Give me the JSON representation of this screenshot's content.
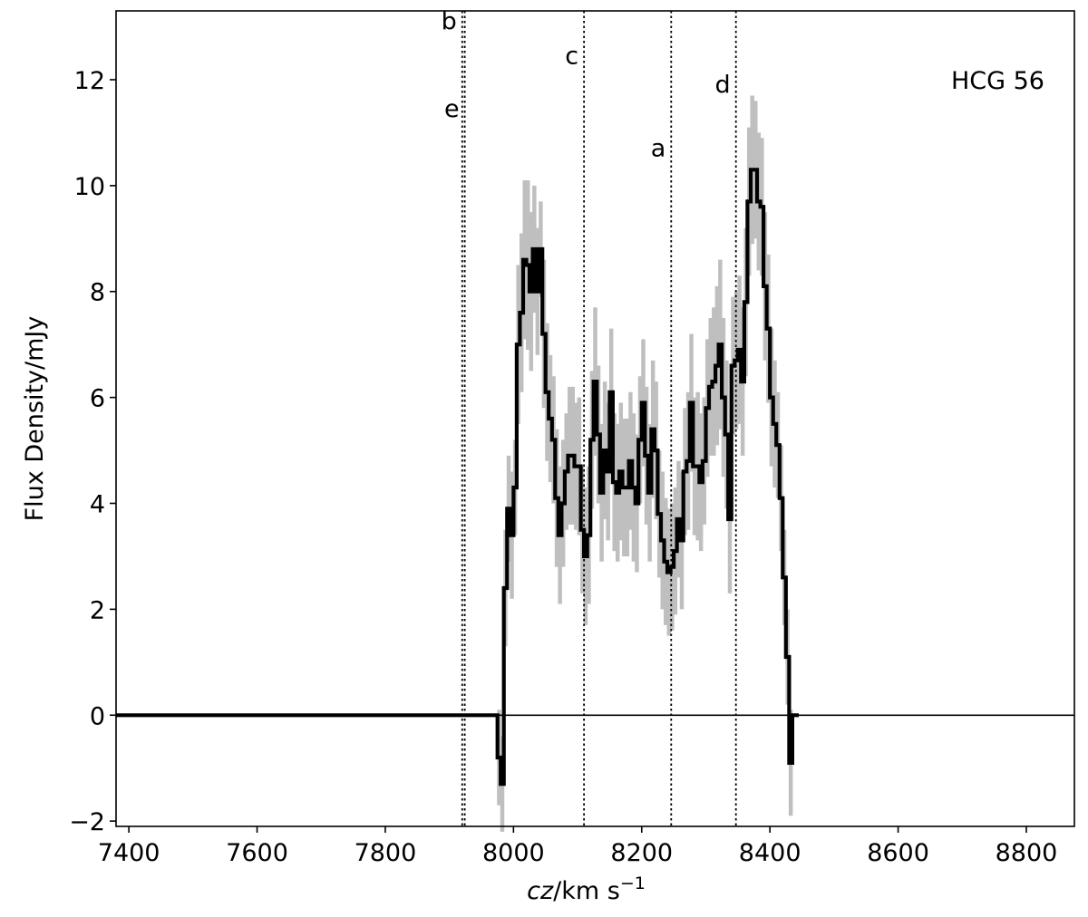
{
  "chart_data": {
    "type": "line",
    "title": "",
    "annotation": "HCG 56",
    "xlabel": {
      "italic": "cz",
      "unit": "/km s",
      "sup": "−1"
    },
    "ylabel": "Flux Density/mJy",
    "xlim": [
      7380,
      8875
    ],
    "ylim": [
      -2.1,
      13.3
    ],
    "xticks": [
      7400,
      7600,
      7800,
      8000,
      8200,
      8400,
      8600,
      8800
    ],
    "yticks": [
      -2,
      0,
      2,
      4,
      6,
      8,
      10,
      12
    ],
    "ytick_labels": [
      "−2",
      "0",
      "2",
      "4",
      "6",
      "8",
      "10",
      "12"
    ],
    "grid": false,
    "baseline": 0,
    "markers": [
      {
        "label": "b",
        "x": 7920,
        "label_y": 12.95
      },
      {
        "label": "e",
        "x": 7924,
        "label_y": 11.3
      },
      {
        "label": "c",
        "x": 8110,
        "label_y": 12.3
      },
      {
        "label": "a",
        "x": 8246,
        "label_y": 10.55
      },
      {
        "label": "d",
        "x": 8347,
        "label_y": 11.75
      }
    ],
    "spectrum_x": [
      7380,
      7975,
      7980,
      7985,
      7990,
      7995,
      8000,
      8005,
      8010,
      8015,
      8020,
      8025,
      8030,
      8035,
      8040,
      8045,
      8050,
      8055,
      8060,
      8065,
      8070,
      8075,
      8080,
      8085,
      8090,
      8095,
      8100,
      8105,
      8110,
      8115,
      8120,
      8125,
      8130,
      8135,
      8140,
      8145,
      8150,
      8155,
      8160,
      8165,
      8170,
      8175,
      8180,
      8185,
      8190,
      8195,
      8200,
      8205,
      8210,
      8215,
      8220,
      8225,
      8230,
      8235,
      8240,
      8245,
      8250,
      8255,
      8260,
      8265,
      8270,
      8275,
      8280,
      8285,
      8290,
      8295,
      8300,
      8305,
      8310,
      8315,
      8320,
      8325,
      8330,
      8335,
      8340,
      8345,
      8350,
      8355,
      8360,
      8365,
      8370,
      8375,
      8380,
      8385,
      8390,
      8395,
      8400,
      8405,
      8410,
      8415,
      8420,
      8425,
      8430,
      8435,
      8440,
      8445,
      8875
    ],
    "spectrum_y": [
      0,
      -0.8,
      -1.3,
      2.4,
      3.9,
      3.4,
      4.3,
      7.0,
      7.6,
      8.6,
      8.5,
      8.0,
      8.8,
      8.0,
      8.8,
      7.2,
      6.1,
      5.6,
      5.2,
      4.1,
      3.4,
      4.0,
      4.6,
      4.9,
      4.9,
      4.7,
      4.7,
      3.5,
      3.0,
      3.4,
      5.2,
      6.3,
      5.3,
      4.2,
      5.0,
      4.6,
      6.1,
      4.4,
      4.2,
      4.6,
      4.3,
      4.3,
      4.8,
      4.3,
      4.0,
      5.2,
      5.9,
      4.9,
      4.2,
      5.4,
      5.0,
      3.8,
      3.3,
      2.9,
      2.7,
      2.8,
      3.1,
      3.7,
      3.3,
      4.6,
      4.8,
      5.9,
      4.7,
      4.7,
      4.4,
      4.8,
      5.8,
      6.2,
      6.3,
      6.6,
      7.0,
      6.0,
      5.3,
      3.7,
      6.6,
      6.7,
      6.9,
      6.3,
      7.8,
      9.7,
      10.3,
      10.3,
      9.7,
      9.6,
      8.1,
      7.3,
      6.0,
      5.5,
      5.1,
      4.1,
      2.6,
      1.1,
      -0.9,
      0,
      0
    ],
    "spectrum_err": [
      0,
      0.9,
      0.9,
      1.1,
      1.0,
      1.2,
      0.9,
      1.5,
      1.5,
      1.5,
      1.6,
      1.5,
      1.2,
      1.2,
      0.9,
      1.4,
      1.3,
      1.2,
      1.2,
      1.3,
      1.3,
      1.2,
      1.1,
      1.3,
      1.3,
      1.2,
      1.3,
      1.2,
      1.3,
      1.3,
      1.3,
      1.4,
      1.3,
      1.3,
      1.3,
      1.3,
      1.2,
      1.3,
      1.3,
      1.3,
      1.3,
      1.3,
      1.3,
      1.4,
      1.3,
      1.2,
      1.2,
      1.3,
      1.3,
      1.3,
      1.3,
      1.2,
      1.3,
      1.2,
      1.2,
      1.2,
      1.2,
      1.1,
      1.3,
      1.2,
      1.3,
      1.3,
      1.3,
      1.4,
      1.3,
      1.2,
      1.3,
      1.3,
      1.4,
      1.5,
      1.6,
      1.5,
      1.4,
      1.4,
      1.3,
      1.3,
      1.4,
      1.4,
      1.4,
      1.4,
      1.4,
      1.3,
      1.3,
      1.3,
      1.4,
      1.4,
      1.3,
      1.2,
      1.0,
      1.0,
      0.9,
      0.9,
      1.0,
      0,
      0
    ],
    "colors": {
      "line": "#000000",
      "errorbars": "#bfbfbf",
      "markers": "#000000"
    }
  }
}
